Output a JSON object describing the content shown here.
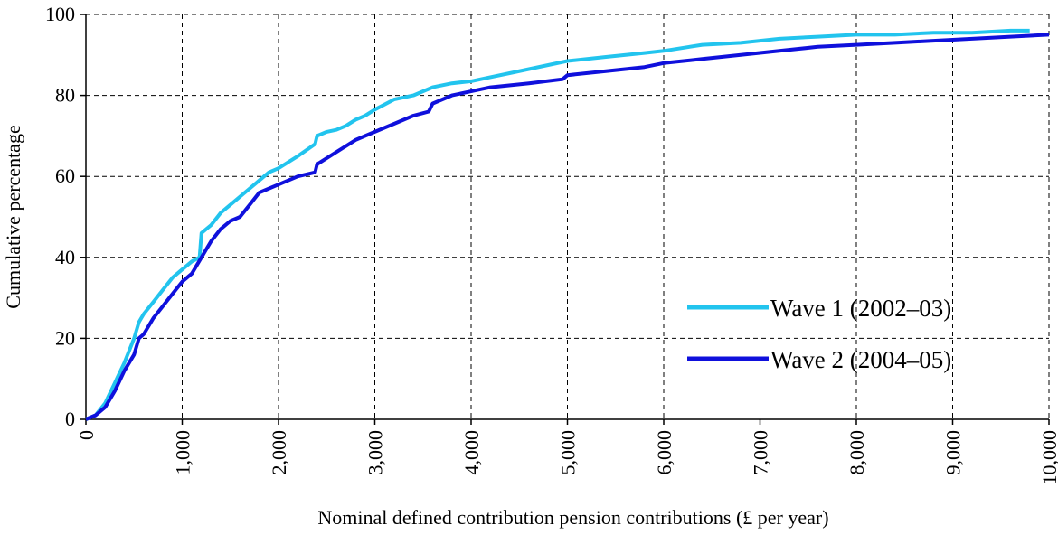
{
  "chart_data": {
    "type": "line",
    "xlabel": "Nominal defined contribution pension contributions (£ per year)",
    "ylabel": "Cumulative percentage",
    "xlim": [
      0,
      10000
    ],
    "ylim": [
      0,
      100
    ],
    "xticks": [
      0,
      {
        "value": 1000,
        "label": "1,000"
      },
      {
        "value": 2000,
        "label": "2,000"
      },
      {
        "value": 3000,
        "label": "3,000"
      },
      {
        "value": 4000,
        "label": "4,000"
      },
      {
        "value": 5000,
        "label": "5,000"
      },
      {
        "value": 6000,
        "label": "6,000"
      },
      {
        "value": 7000,
        "label": "7,000"
      },
      {
        "value": 8000,
        "label": "8,000"
      },
      {
        "value": 9000,
        "label": "9,000"
      },
      {
        "value": 10000,
        "label": "10,000"
      }
    ],
    "yticks": [
      0,
      20,
      40,
      60,
      80,
      100
    ],
    "grid": true,
    "legend": "lower right",
    "series": [
      {
        "name": "Wave 1 (2002–03)",
        "color": "#22c4ee",
        "x": [
          0,
          100,
          200,
          300,
          400,
          500,
          550,
          600,
          700,
          800,
          900,
          1000,
          1100,
          1180,
          1200,
          1300,
          1400,
          1500,
          1600,
          1700,
          1800,
          1900,
          2000,
          2200,
          2380,
          2400,
          2500,
          2600,
          2700,
          2800,
          2900,
          3000,
          3200,
          3400,
          3600,
          3800,
          4000,
          4200,
          4400,
          4600,
          4800,
          5000,
          5400,
          5800,
          6000,
          6400,
          6800,
          7200,
          7600,
          8000,
          8400,
          8800,
          9200,
          9600,
          9800
        ],
        "values": [
          0,
          1,
          4,
          9,
          14,
          20,
          24,
          26,
          29,
          32,
          35,
          37,
          39,
          40,
          46,
          48,
          51,
          53,
          55,
          57,
          59,
          61,
          62,
          65,
          68,
          70,
          71,
          71.5,
          72.5,
          74,
          75,
          76.5,
          79,
          80,
          82,
          83,
          83.5,
          84.5,
          85.5,
          86.5,
          87.5,
          88.5,
          89.5,
          90.5,
          91,
          92.5,
          93,
          94,
          94.5,
          95,
          95,
          95.5,
          95.5,
          96,
          96
        ]
      },
      {
        "name": "Wave 2 (2004–05)",
        "color": "#0f10dc",
        "x": [
          0,
          100,
          200,
          300,
          400,
          500,
          550,
          600,
          700,
          800,
          900,
          1000,
          1100,
          1200,
          1300,
          1400,
          1500,
          1600,
          1700,
          1800,
          1900,
          2000,
          2200,
          2380,
          2400,
          2600,
          2800,
          2900,
          3000,
          3200,
          3400,
          3560,
          3600,
          3800,
          4000,
          4200,
          4600,
          4950,
          5000,
          5400,
          5800,
          6000,
          6400,
          6800,
          7200,
          7600,
          8000,
          8400,
          8800,
          9200,
          9600,
          10000
        ],
        "values": [
          0,
          1,
          3,
          7,
          12,
          16,
          20,
          21,
          25,
          28,
          31,
          34,
          36,
          40,
          44,
          47,
          49,
          50,
          53,
          56,
          57,
          58,
          60,
          61,
          63,
          66,
          69,
          70,
          71,
          73,
          75,
          76,
          78,
          80,
          81,
          82,
          83,
          84,
          85,
          86,
          87,
          88,
          89,
          90,
          91,
          92,
          92.5,
          93,
          93.5,
          94,
          94.5,
          95
        ]
      }
    ]
  }
}
